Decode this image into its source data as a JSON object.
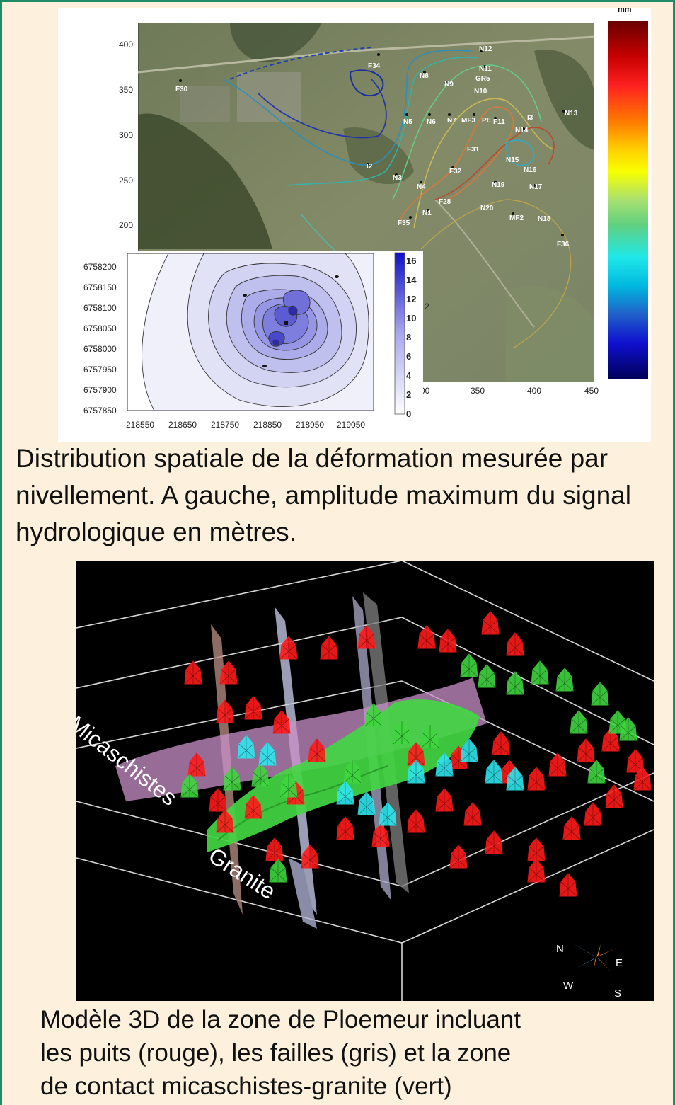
{
  "top_figure": {
    "colorbar_unit": "mm",
    "map_y_ticks": [
      "400",
      "350",
      "300",
      "250",
      "200"
    ],
    "map_x_ticks": [
      "00",
      "350",
      "400",
      "450"
    ],
    "map_partial_label": "2",
    "well_labels": [
      "F34",
      "N12",
      "N11",
      "GR5",
      "N8",
      "N9",
      "N10",
      "F30",
      "N5",
      "N6",
      "N7",
      "MF3",
      "PE",
      "F11",
      "N13",
      "N14",
      "I3",
      "F31",
      "N15",
      "N16",
      "I2",
      "N3",
      "F32",
      "N4",
      "N19",
      "N17",
      "F28",
      "N1",
      "N20",
      "F35",
      "MF2",
      "N18",
      "F36"
    ],
    "inset": {
      "y_ticks": [
        "6758200",
        "6758150",
        "6758100",
        "6758050",
        "6758000",
        "6757950",
        "6757900",
        "6757850"
      ],
      "x_ticks": [
        "218550",
        "218650",
        "218750",
        "218850",
        "218950",
        "219050"
      ],
      "colorbar_ticks": [
        "16",
        "14",
        "12",
        "10",
        "8",
        "6",
        "4",
        "2",
        "0"
      ]
    }
  },
  "caption_top": "Distribution spatiale de la déformation mesurée par nivellement. A gauche, amplitude maximum du signal hydrologique en mètres.",
  "model_3d": {
    "label_micaschistes": "Micaschistes",
    "label_granite": "Granite",
    "compass": {
      "n": "N",
      "e": "E",
      "s": "S",
      "w": "W"
    }
  },
  "caption_bottom_lines": [
    "Modèle 3D de la zone de Ploemeur incluant",
    "les puits (rouge), les failles (gris) et la zone",
    "de contact micaschistes-granite (vert)"
  ],
  "colors": {
    "border": "#1f8c67",
    "background": "#fdf0dc",
    "wells": "#ff1a1a",
    "contact_zone": "#3fd63f",
    "faults": "#b8b8d8"
  }
}
